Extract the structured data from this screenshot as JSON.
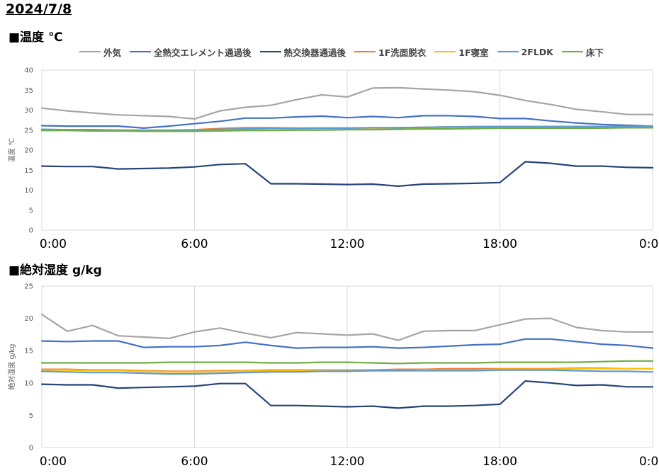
{
  "date": "2024/7/8",
  "charts": [
    {
      "title": "■温度 ℃"
    },
    {
      "title": "■絶対湿度 g/kg"
    }
  ],
  "legend": [
    {
      "name": "外気",
      "color": "#a5a5a5"
    },
    {
      "name": "全熱交エレメント通過後",
      "color": "#4472c4"
    },
    {
      "name": "熱交換器通過後",
      "color": "#264478"
    },
    {
      "name": "1F洗面脱衣",
      "color": "#ed7d31"
    },
    {
      "name": "1F寝室",
      "color": "#ffc000"
    },
    {
      "name": "2FLDK",
      "color": "#5b9bd5"
    },
    {
      "name": "床下",
      "color": "#70ad47"
    }
  ],
  "chart_data": [
    {
      "type": "line",
      "title": "■温度 ℃",
      "ylabel": "温度 ℃",
      "ylim": [
        0,
        40
      ],
      "yticks": [
        0,
        5,
        10,
        15,
        20,
        25,
        30,
        35,
        40
      ],
      "xlim": [
        0,
        24
      ],
      "xticks": [
        {
          "value": 0,
          "label": "0:00"
        },
        {
          "value": 6,
          "label": "6:00"
        },
        {
          "value": 12,
          "label": "12:00"
        },
        {
          "value": 18,
          "label": "18:00"
        },
        {
          "value": 24,
          "label": "0:00"
        }
      ],
      "x": [
        0,
        1,
        2,
        3,
        4,
        5,
        6,
        7,
        8,
        9,
        10,
        11,
        12,
        13,
        14,
        15,
        16,
        17,
        18,
        19,
        20,
        21,
        22,
        23,
        24
      ],
      "grid": "vertical",
      "series": [
        {
          "name": "外気",
          "color": "#a5a5a5",
          "values": [
            30.5,
            29.8,
            29.3,
            28.8,
            28.6,
            28.4,
            27.8,
            29.8,
            30.7,
            31.2,
            32.6,
            33.8,
            33.3,
            35.5,
            35.6,
            35.3,
            35.0,
            34.6,
            33.7,
            32.4,
            31.4,
            30.2,
            29.6,
            28.9,
            28.9
          ]
        },
        {
          "name": "全熱交エレメント通過後",
          "color": "#4472c4",
          "values": [
            26.1,
            26.0,
            26.0,
            26.0,
            25.5,
            26.0,
            26.6,
            27.2,
            28.0,
            28.0,
            28.3,
            28.5,
            28.1,
            28.4,
            28.1,
            28.6,
            28.6,
            28.4,
            27.9,
            27.9,
            27.3,
            26.8,
            26.4,
            26.2,
            26.0
          ]
        },
        {
          "name": "熱交換器通過後",
          "color": "#264478",
          "values": [
            16.0,
            15.9,
            15.9,
            15.3,
            15.4,
            15.5,
            15.8,
            16.4,
            16.6,
            11.6,
            11.6,
            11.5,
            11.4,
            11.5,
            11.0,
            11.5,
            11.6,
            11.7,
            11.9,
            17.1,
            16.7,
            16.0,
            16.0,
            15.7,
            15.6
          ]
        },
        {
          "name": "1F洗面脱衣",
          "color": "#ed7d31",
          "values": [
            25.1,
            25.1,
            25.1,
            25.0,
            25.0,
            25.0,
            25.1,
            25.4,
            25.6,
            25.6,
            25.5,
            25.5,
            25.5,
            25.5,
            25.6,
            25.7,
            25.8,
            25.9,
            25.9,
            25.9,
            25.9,
            25.9,
            25.9,
            25.9,
            25.9
          ]
        },
        {
          "name": "1F寝室",
          "color": "#ffc000",
          "values": [
            25.0,
            25.0,
            25.0,
            24.9,
            24.9,
            24.9,
            25.0,
            25.2,
            25.3,
            25.4,
            25.4,
            25.4,
            25.4,
            25.5,
            25.5,
            25.6,
            25.6,
            25.7,
            25.7,
            25.8,
            25.8,
            25.8,
            25.8,
            25.8,
            25.8
          ]
        },
        {
          "name": "2FLDK",
          "color": "#5b9bd5",
          "values": [
            25.2,
            25.1,
            25.1,
            25.0,
            24.9,
            24.9,
            25.0,
            25.2,
            25.3,
            25.4,
            25.4,
            25.5,
            25.5,
            25.6,
            25.6,
            25.7,
            25.8,
            25.8,
            25.9,
            25.9,
            25.9,
            25.9,
            25.9,
            25.9,
            26.0
          ]
        },
        {
          "name": "床下",
          "color": "#70ad47",
          "values": [
            24.9,
            24.9,
            24.8,
            24.8,
            24.7,
            24.7,
            24.7,
            24.8,
            24.9,
            24.9,
            25.0,
            25.0,
            25.1,
            25.1,
            25.2,
            25.3,
            25.3,
            25.4,
            25.5,
            25.5,
            25.5,
            25.5,
            25.5,
            25.6,
            25.6
          ]
        }
      ]
    },
    {
      "type": "line",
      "title": "■絶対湿度 g/kg",
      "ylabel": "絶対湿度 g/kg",
      "ylim": [
        0,
        25
      ],
      "yticks": [
        0,
        5,
        10,
        15,
        20,
        25
      ],
      "xlim": [
        0,
        24
      ],
      "xticks": [
        {
          "value": 0,
          "label": "0:00"
        },
        {
          "value": 6,
          "label": "6:00"
        },
        {
          "value": 12,
          "label": "12:00"
        },
        {
          "value": 18,
          "label": "18:00"
        },
        {
          "value": 24,
          "label": "0:00"
        }
      ],
      "x": [
        0,
        1,
        2,
        3,
        4,
        5,
        6,
        7,
        8,
        9,
        10,
        11,
        12,
        13,
        14,
        15,
        16,
        17,
        18,
        19,
        20,
        21,
        22,
        23,
        24
      ],
      "grid": "vertical",
      "series": [
        {
          "name": "外気",
          "color": "#a5a5a5",
          "values": [
            20.6,
            18.0,
            18.9,
            17.3,
            17.1,
            16.9,
            17.9,
            18.5,
            17.7,
            17.0,
            17.8,
            17.6,
            17.4,
            17.6,
            16.6,
            18.0,
            18.1,
            18.1,
            19.0,
            19.9,
            20.0,
            18.6,
            18.1,
            17.9,
            17.9
          ]
        },
        {
          "name": "全熱交エレメント通過後",
          "color": "#4472c4",
          "values": [
            16.5,
            16.4,
            16.5,
            16.5,
            15.5,
            15.6,
            15.6,
            15.8,
            16.3,
            15.8,
            15.4,
            15.5,
            15.5,
            15.6,
            15.4,
            15.5,
            15.7,
            15.9,
            16.0,
            16.8,
            16.8,
            16.4,
            16.0,
            15.8,
            15.4
          ]
        },
        {
          "name": "熱交換器通過後",
          "color": "#264478",
          "values": [
            9.8,
            9.7,
            9.7,
            9.2,
            9.3,
            9.4,
            9.5,
            9.9,
            9.9,
            6.5,
            6.5,
            6.4,
            6.3,
            6.4,
            6.1,
            6.4,
            6.4,
            6.5,
            6.7,
            10.3,
            10.0,
            9.6,
            9.7,
            9.4,
            9.4
          ]
        },
        {
          "name": "1F洗面脱衣",
          "color": "#ed7d31",
          "values": [
            12.1,
            12.1,
            12.0,
            12.0,
            11.9,
            11.8,
            11.8,
            11.9,
            11.9,
            12.0,
            12.0,
            12.0,
            12.0,
            12.0,
            12.1,
            12.1,
            12.2,
            12.2,
            12.2,
            12.2,
            12.2,
            12.3,
            12.3,
            12.2,
            12.2
          ]
        },
        {
          "name": "1F寝室",
          "color": "#ffc000",
          "values": [
            12.0,
            12.0,
            11.9,
            11.9,
            11.8,
            11.7,
            11.7,
            11.8,
            11.8,
            11.9,
            11.9,
            11.9,
            11.9,
            11.9,
            11.9,
            12.0,
            12.0,
            12.0,
            12.1,
            12.1,
            12.1,
            12.2,
            12.2,
            12.2,
            12.2
          ]
        },
        {
          "name": "2FLDK",
          "color": "#5b9bd5",
          "values": [
            11.8,
            11.7,
            11.6,
            11.6,
            11.5,
            11.4,
            11.4,
            11.5,
            11.6,
            11.7,
            11.7,
            11.8,
            11.8,
            11.9,
            11.9,
            11.9,
            11.9,
            11.9,
            12.0,
            12.0,
            12.0,
            11.9,
            11.8,
            11.8,
            11.7
          ]
        },
        {
          "name": "床下",
          "color": "#70ad47",
          "values": [
            13.1,
            13.1,
            13.1,
            13.1,
            13.1,
            13.2,
            13.2,
            13.2,
            13.2,
            13.1,
            13.1,
            13.2,
            13.2,
            13.1,
            13.0,
            13.1,
            13.1,
            13.1,
            13.2,
            13.2,
            13.2,
            13.2,
            13.3,
            13.4,
            13.4
          ]
        }
      ]
    }
  ]
}
